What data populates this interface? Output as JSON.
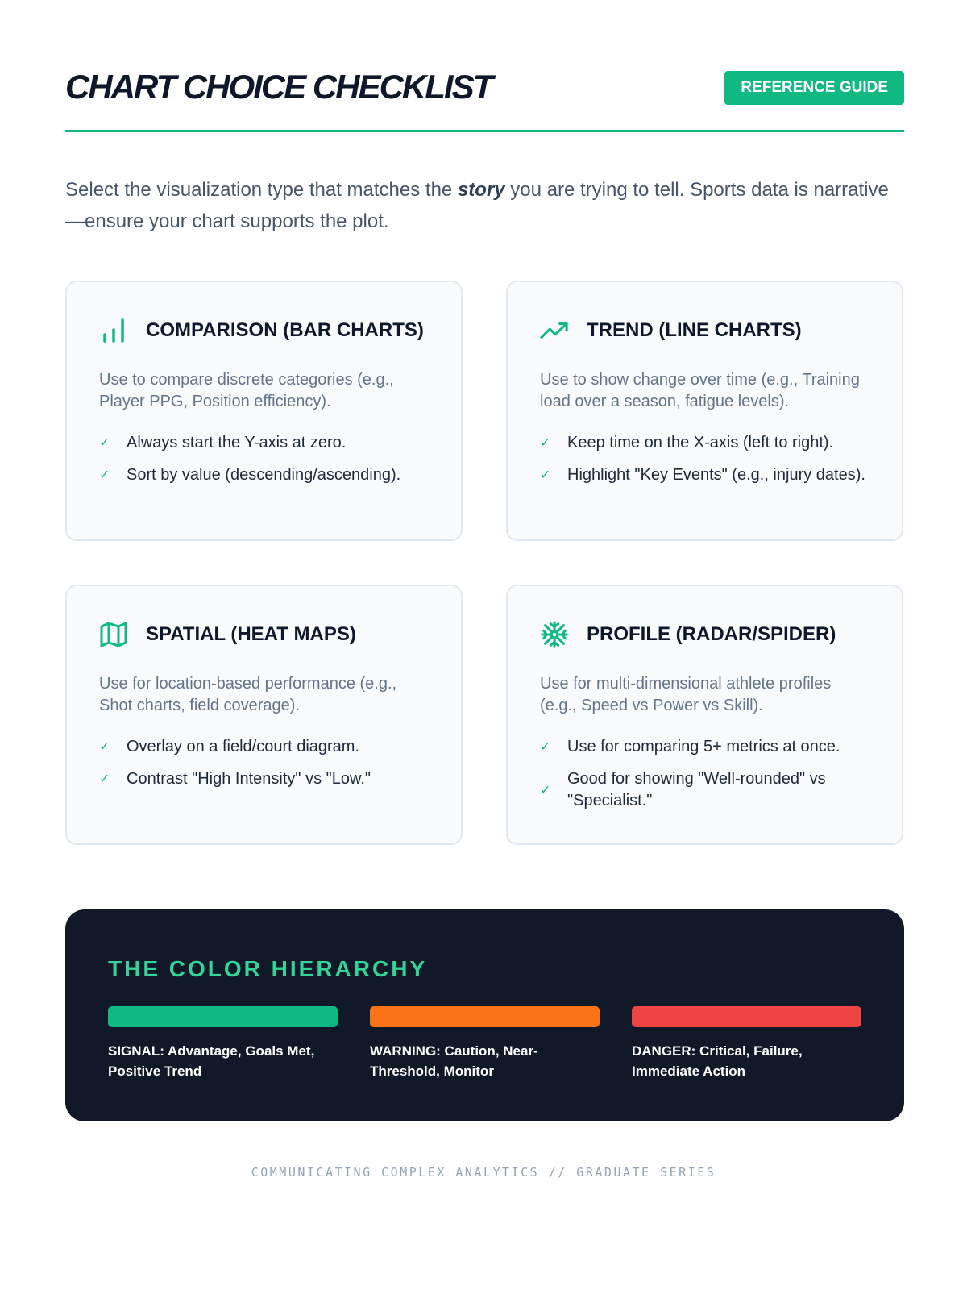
{
  "header": {
    "title": "CHART CHOICE CHECKLIST",
    "badge": "REFERENCE GUIDE"
  },
  "intro": {
    "before": "Select the visualization type that matches the ",
    "emphasis": "story",
    "after": " you are trying to tell. Sports data is narrative—ensure your chart supports the plot."
  },
  "cards": [
    {
      "icon": "bar-chart-icon",
      "title": "COMPARISON (BAR CHARTS)",
      "description": "Use to compare discrete categories (e.g., Player PPG, Position efficiency).",
      "items": [
        "Always start the Y-axis at zero.",
        "Sort by value (descending/ascending)."
      ]
    },
    {
      "icon": "trending-up-icon",
      "title": "TREND (LINE CHARTS)",
      "description": "Use to show change over time (e.g., Training load over a season, fatigue levels).",
      "items": [
        "Keep time on the X-axis (left to right).",
        "Highlight \"Key Events\" (e.g., injury dates)."
      ]
    },
    {
      "icon": "map-icon",
      "title": "SPATIAL (HEAT MAPS)",
      "description": "Use for location-based performance (e.g., Shot charts, field coverage).",
      "items": [
        "Overlay on a field/court diagram.",
        "Contrast \"High Intensity\" vs \"Low.\""
      ]
    },
    {
      "icon": "snowflake-icon",
      "title": "PROFILE (RADAR/SPIDER)",
      "description": "Use for multi-dimensional athlete profiles (e.g., Speed vs Power vs Skill).",
      "items": [
        "Use for comparing 5+ metrics at once.",
        "Good for showing \"Well-rounded\" vs \"Specialist.\""
      ]
    }
  ],
  "colors": {
    "accent": "#10b981",
    "check": "#10b981"
  },
  "hierarchy": {
    "title": "THE COLOR HIERARCHY",
    "swatches": [
      {
        "color": "#10b981",
        "label": "SIGNAL: Advantage, Goals Met, Positive Trend"
      },
      {
        "color": "#f97316",
        "label": "WARNING: Caution, Near-Threshold, Monitor"
      },
      {
        "color": "#ef4444",
        "label": "DANGER: Critical, Failure, Immediate Action"
      }
    ]
  },
  "footer": "COMMUNICATING COMPLEX ANALYTICS // GRADUATE SERIES"
}
